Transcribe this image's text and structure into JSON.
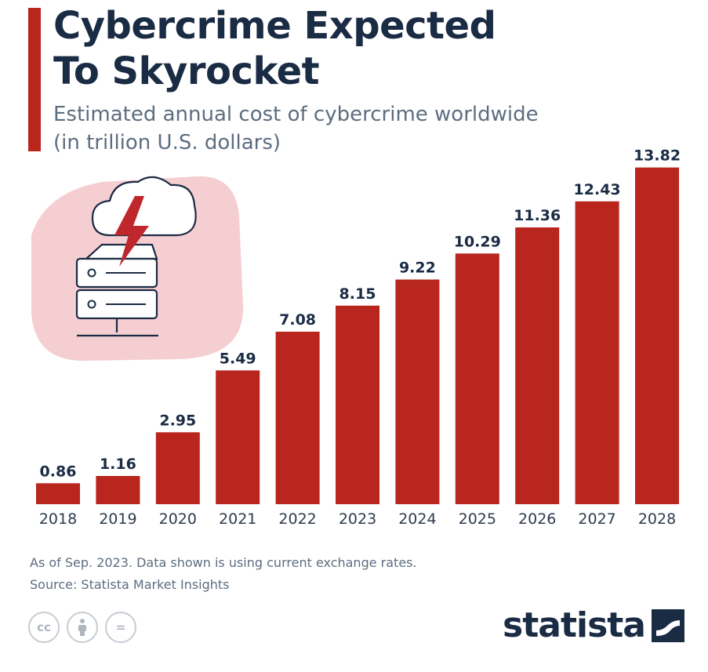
{
  "colors": {
    "accent": "#b8261e",
    "title": "#1a2b44",
    "text": "#5d6d80",
    "illustration_bg": "#f4c9cc"
  },
  "header": {
    "title_line1": "Cybercrime Expected",
    "title_line2": "To Skyrocket",
    "subtitle_line1": "Estimated annual cost of cybercrime worldwide",
    "subtitle_line2": "(in trillion U.S. dollars)"
  },
  "chart_data": {
    "type": "bar",
    "title": "Cybercrime Expected To Skyrocket",
    "subtitle": "Estimated annual cost of cybercrime worldwide (in trillion U.S. dollars)",
    "categories": [
      "2018",
      "2019",
      "2020",
      "2021",
      "2022",
      "2023",
      "2024",
      "2025",
      "2026",
      "2027",
      "2028"
    ],
    "values": [
      0.86,
      1.16,
      2.95,
      5.49,
      7.08,
      8.15,
      9.22,
      10.29,
      11.36,
      12.43,
      13.82
    ],
    "value_labels": [
      "0.86",
      "1.16",
      "2.95",
      "5.49",
      "7.08",
      "8.15",
      "9.22",
      "10.29",
      "11.36",
      "12.43",
      "13.82"
    ],
    "xlabel": "",
    "ylabel": "",
    "ylim": [
      0,
      14
    ],
    "grid": false,
    "legend": "none"
  },
  "footer": {
    "note": "As of Sep. 2023. Data shown is using current exchange rates.",
    "source": "Source: Statista Market Insights",
    "license_icons": [
      "cc-icon",
      "attribution-icon",
      "no-derivatives-icon"
    ],
    "license_cc": "cc",
    "license_nd": "="
  },
  "brand": {
    "name": "statista"
  }
}
